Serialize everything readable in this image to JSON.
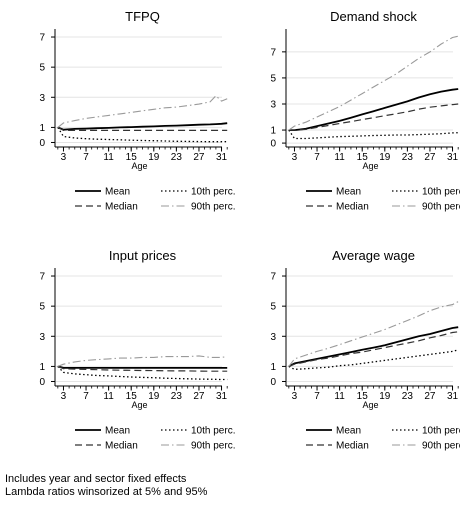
{
  "notes": {
    "line1": "Includes year and sector fixed effects",
    "line2": "Lambda ratios winsorized at 5% and 95%"
  },
  "legend_labels": {
    "mean": "Mean",
    "median": "Median",
    "p10": "10th perc.",
    "p90": "90th perc."
  },
  "chart_data": [
    {
      "type": "line",
      "title": "TFPQ",
      "xlabel": "Age",
      "ylabel": "",
      "x_ticks": [
        3,
        7,
        11,
        15,
        19,
        23,
        27,
        31
      ],
      "y_ticks": [
        0,
        1,
        3,
        5,
        7
      ],
      "xlim": [
        1.5,
        32.5
      ],
      "ylim": [
        -0.3,
        7.4
      ],
      "grid": true,
      "legend": "bottom",
      "x": [
        2,
        3,
        5,
        7,
        9,
        11,
        13,
        15,
        17,
        19,
        21,
        23,
        25,
        27,
        29,
        30,
        31,
        32
      ],
      "series": [
        {
          "name": "Mean",
          "values": [
            1.0,
            0.85,
            0.9,
            0.92,
            0.95,
            0.97,
            1.0,
            1.02,
            1.05,
            1.07,
            1.1,
            1.12,
            1.15,
            1.18,
            1.2,
            1.22,
            1.24,
            1.28
          ]
        },
        {
          "name": "Median",
          "values": [
            1.0,
            0.8,
            0.8,
            0.8,
            0.8,
            0.8,
            0.8,
            0.8,
            0.8,
            0.8,
            0.8,
            0.8,
            0.8,
            0.8,
            0.8,
            0.8,
            0.8,
            0.8
          ]
        },
        {
          "name": "10th perc.",
          "values": [
            1.0,
            0.4,
            0.3,
            0.25,
            0.22,
            0.2,
            0.18,
            0.15,
            0.13,
            0.12,
            0.1,
            0.08,
            0.07,
            0.06,
            0.05,
            0.05,
            0.05,
            0.05
          ]
        },
        {
          "name": "90th perc.",
          "values": [
            1.0,
            1.3,
            1.45,
            1.6,
            1.7,
            1.8,
            1.9,
            2.0,
            2.1,
            2.2,
            2.3,
            2.35,
            2.45,
            2.55,
            2.7,
            3.1,
            2.75,
            2.9
          ]
        }
      ]
    },
    {
      "type": "line",
      "title": "Demand shock",
      "xlabel": "Age",
      "ylabel": "",
      "x_ticks": [
        3,
        7,
        11,
        15,
        19,
        23,
        27,
        31
      ],
      "y_ticks": [
        0,
        1,
        3,
        5,
        7
      ],
      "xlim": [
        1.5,
        32.5
      ],
      "ylim": [
        -0.3,
        8.6
      ],
      "grid": true,
      "legend": "bottom",
      "x": [
        2,
        3,
        5,
        7,
        9,
        11,
        13,
        15,
        17,
        19,
        21,
        23,
        25,
        27,
        29,
        31,
        32
      ],
      "series": [
        {
          "name": "Mean",
          "values": [
            1.0,
            1.0,
            1.1,
            1.3,
            1.5,
            1.7,
            1.95,
            2.2,
            2.45,
            2.7,
            2.95,
            3.2,
            3.5,
            3.75,
            3.95,
            4.1,
            4.15
          ]
        },
        {
          "name": "Median",
          "values": [
            1.0,
            1.0,
            1.05,
            1.2,
            1.35,
            1.5,
            1.65,
            1.8,
            1.95,
            2.1,
            2.25,
            2.4,
            2.6,
            2.75,
            2.85,
            2.95,
            3.0
          ]
        },
        {
          "name": "10th perc.",
          "values": [
            1.0,
            0.35,
            0.35,
            0.4,
            0.45,
            0.5,
            0.52,
            0.55,
            0.58,
            0.6,
            0.62,
            0.62,
            0.65,
            0.68,
            0.72,
            0.78,
            0.8
          ]
        },
        {
          "name": "90th perc.",
          "values": [
            1.0,
            1.3,
            1.6,
            2.0,
            2.4,
            2.8,
            3.3,
            3.8,
            4.3,
            4.8,
            5.3,
            5.9,
            6.5,
            7.0,
            7.6,
            8.1,
            8.2
          ]
        }
      ]
    },
    {
      "type": "line",
      "title": "Input prices",
      "xlabel": "Age",
      "ylabel": "",
      "x_ticks": [
        3,
        7,
        11,
        15,
        19,
        23,
        27,
        31
      ],
      "y_ticks": [
        0,
        1,
        3,
        5,
        7
      ],
      "xlim": [
        1.5,
        32.5
      ],
      "ylim": [
        -0.3,
        7.4
      ],
      "grid": true,
      "legend": "bottom",
      "x": [
        2,
        3,
        5,
        7,
        9,
        11,
        13,
        15,
        17,
        19,
        21,
        23,
        25,
        27,
        29,
        31,
        32
      ],
      "series": [
        {
          "name": "Mean",
          "values": [
            1.0,
            0.9,
            0.9,
            0.9,
            0.9,
            0.9,
            0.9,
            0.9,
            0.9,
            0.9,
            0.9,
            0.9,
            0.9,
            0.9,
            0.9,
            0.9,
            0.9
          ]
        },
        {
          "name": "Median",
          "values": [
            1.0,
            0.85,
            0.82,
            0.8,
            0.78,
            0.76,
            0.75,
            0.74,
            0.73,
            0.72,
            0.71,
            0.7,
            0.7,
            0.69,
            0.68,
            0.68,
            0.68
          ]
        },
        {
          "name": "10th perc.",
          "values": [
            1.0,
            0.6,
            0.5,
            0.45,
            0.4,
            0.37,
            0.33,
            0.3,
            0.27,
            0.25,
            0.22,
            0.2,
            0.18,
            0.16,
            0.15,
            0.13,
            0.13
          ]
        },
        {
          "name": "90th perc.",
          "values": [
            1.0,
            1.15,
            1.3,
            1.4,
            1.45,
            1.5,
            1.55,
            1.55,
            1.6,
            1.6,
            1.65,
            1.65,
            1.65,
            1.7,
            1.6,
            1.6,
            1.65
          ]
        }
      ]
    },
    {
      "type": "line",
      "title": "Average wage",
      "xlabel": "Age",
      "ylabel": "",
      "x_ticks": [
        3,
        7,
        11,
        15,
        19,
        23,
        27,
        31
      ],
      "y_ticks": [
        0,
        1,
        3,
        5,
        7
      ],
      "xlim": [
        1.5,
        32.5
      ],
      "ylim": [
        -0.3,
        7.4
      ],
      "grid": true,
      "legend": "bottom",
      "x": [
        2,
        3,
        5,
        7,
        9,
        11,
        13,
        15,
        17,
        19,
        21,
        23,
        25,
        27,
        29,
        31,
        32
      ],
      "series": [
        {
          "name": "Mean",
          "values": [
            1.0,
            1.2,
            1.35,
            1.5,
            1.65,
            1.8,
            1.95,
            2.1,
            2.25,
            2.4,
            2.6,
            2.8,
            3.0,
            3.15,
            3.35,
            3.55,
            3.6
          ]
        },
        {
          "name": "Median",
          "values": [
            1.0,
            1.15,
            1.3,
            1.45,
            1.55,
            1.7,
            1.85,
            1.95,
            2.1,
            2.25,
            2.4,
            2.55,
            2.7,
            2.9,
            3.05,
            3.25,
            3.3
          ]
        },
        {
          "name": "10th perc.",
          "values": [
            1.0,
            0.8,
            0.85,
            0.9,
            0.95,
            1.05,
            1.1,
            1.2,
            1.3,
            1.4,
            1.5,
            1.6,
            1.7,
            1.8,
            1.9,
            2.0,
            2.1
          ]
        },
        {
          "name": "90th perc.",
          "values": [
            1.0,
            1.5,
            1.75,
            2.0,
            2.2,
            2.45,
            2.7,
            2.95,
            3.2,
            3.45,
            3.75,
            4.05,
            4.35,
            4.7,
            4.95,
            5.1,
            5.3
          ]
        }
      ]
    }
  ]
}
